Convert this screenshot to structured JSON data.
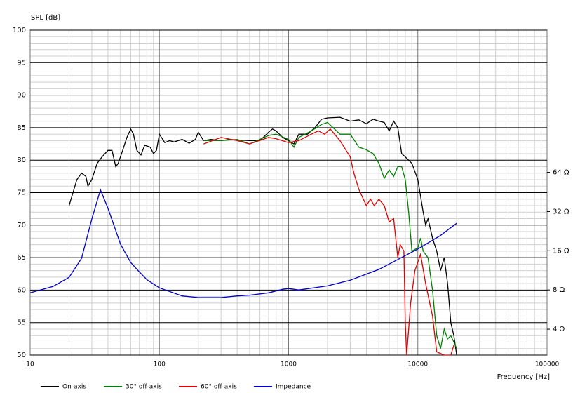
{
  "chart_data": {
    "type": "line",
    "y_label": "SPL [dB]",
    "x_label": "Frequency [Hz]",
    "xscale": "log",
    "xlim": [
      10,
      100000
    ],
    "xticks": [
      10,
      100,
      1000,
      10000,
      100000
    ],
    "ylim": [
      50,
      100
    ],
    "yticks": [
      50,
      55,
      60,
      65,
      70,
      75,
      80,
      85,
      90,
      95,
      100
    ],
    "y2scale": "log",
    "y2lim": [
      2.53,
      790
    ],
    "y2ticks": [
      {
        "value": 4,
        "label": "4 Ω"
      },
      {
        "value": 8,
        "label": "8 Ω"
      },
      {
        "value": 16,
        "label": "16 Ω"
      },
      {
        "value": 32,
        "label": "32 Ω"
      },
      {
        "value": 64,
        "label": "64 Ω"
      }
    ],
    "grid": true,
    "minor_grid": true,
    "legend": "bottom",
    "series": [
      {
        "name": "On-axis",
        "color": "#000000",
        "x": [
          20,
          23,
          25,
          27,
          28,
          30,
          33,
          36,
          40,
          43,
          46,
          48,
          52,
          56,
          60,
          63,
          67,
          72,
          77,
          85,
          90,
          95,
          100,
          110,
          120,
          130,
          150,
          170,
          190,
          200,
          220,
          250,
          300,
          350,
          400,
          500,
          600,
          700,
          750,
          800,
          900,
          1000,
          1100,
          1200,
          1400,
          1600,
          1800,
          2000,
          2500,
          3000,
          3500,
          4000,
          4500,
          5000,
          5500,
          6000,
          6500,
          7000,
          7500,
          8000,
          9000,
          10000,
          11000,
          11500,
          12000,
          13000,
          14000,
          15000,
          16000,
          17000,
          18000,
          19000,
          20000
        ],
        "values": [
          73,
          77,
          78,
          77.5,
          76,
          77,
          79.5,
          80.5,
          81.5,
          81.5,
          79,
          79.5,
          81.5,
          83.5,
          84.8,
          84,
          81.5,
          80.8,
          82.3,
          82,
          81,
          81.5,
          84,
          82.7,
          83,
          82.8,
          83.2,
          82.6,
          83.2,
          84.3,
          83,
          83.2,
          83,
          83.2,
          83.1,
          83,
          83,
          84.3,
          84.8,
          84.5,
          83.5,
          83,
          82.5,
          84,
          84,
          85,
          86.3,
          86.5,
          86.6,
          86,
          86.2,
          85.6,
          86.3,
          86,
          85.8,
          84.5,
          86,
          85,
          81,
          80.5,
          79.5,
          77,
          72,
          70,
          71,
          68,
          66,
          63,
          65,
          61,
          55,
          53,
          50
        ]
      },
      {
        "name": "30° off-axis",
        "color": "#008000",
        "x": [
          220,
          300,
          400,
          500,
          700,
          800,
          1000,
          1100,
          1200,
          1500,
          1800,
          2000,
          2500,
          3000,
          3500,
          4000,
          4500,
          5000,
          5500,
          6000,
          6500,
          7000,
          7500,
          8000,
          8500,
          9000,
          10000,
          10500,
          11000,
          12000,
          13000,
          14000,
          15000,
          16000,
          17000,
          18000,
          19000,
          20000
        ],
        "values": [
          83,
          83,
          83.2,
          82.5,
          83.8,
          84,
          83.2,
          82,
          83.5,
          84.5,
          85.5,
          85.8,
          84,
          84,
          82,
          81.6,
          81,
          79.5,
          77.2,
          78.5,
          77.5,
          79,
          79,
          77,
          72,
          66,
          66.5,
          68,
          66,
          65,
          60,
          53,
          51,
          54,
          52.5,
          53,
          52,
          51
        ]
      },
      {
        "name": "60° off-axis",
        "color": "#e00000",
        "x": [
          220,
          300,
          400,
          500,
          700,
          800,
          1000,
          1200,
          1500,
          1700,
          1900,
          2100,
          2500,
          3000,
          3200,
          3500,
          4000,
          4300,
          4600,
          5000,
          5500,
          6000,
          6500,
          7000,
          7300,
          7800,
          8000,
          8200,
          8800,
          9500,
          10500,
          11500,
          13000,
          14000,
          16000,
          18000,
          19000
        ],
        "values": [
          82.5,
          83.5,
          83,
          82.5,
          83.5,
          83.3,
          82.7,
          83,
          84,
          84.5,
          84,
          84.8,
          83,
          80.5,
          78,
          75.5,
          73,
          74,
          73,
          74,
          73,
          70.5,
          71,
          65,
          67,
          66,
          55,
          50,
          58,
          63,
          65.5,
          61,
          56,
          50.5,
          50,
          50,
          51.5
        ]
      },
      {
        "name": "Impedance",
        "color": "#0000cc",
        "axis": "y2",
        "x": [
          10,
          15,
          20,
          25,
          30,
          35,
          40,
          50,
          60,
          70,
          80,
          100,
          150,
          200,
          300,
          400,
          500,
          700,
          900,
          1000,
          1200,
          2000,
          3000,
          5000,
          7000,
          10000,
          15000,
          20000
        ],
        "values": [
          7.6,
          8.5,
          10,
          14,
          28,
          47,
          34,
          18,
          13,
          11,
          9.6,
          8.3,
          7.2,
          7.0,
          7.0,
          7.2,
          7.3,
          7.6,
          8.1,
          8.2,
          8.0,
          8.6,
          9.5,
          11.5,
          13.7,
          16.5,
          21,
          26
        ]
      }
    ]
  }
}
